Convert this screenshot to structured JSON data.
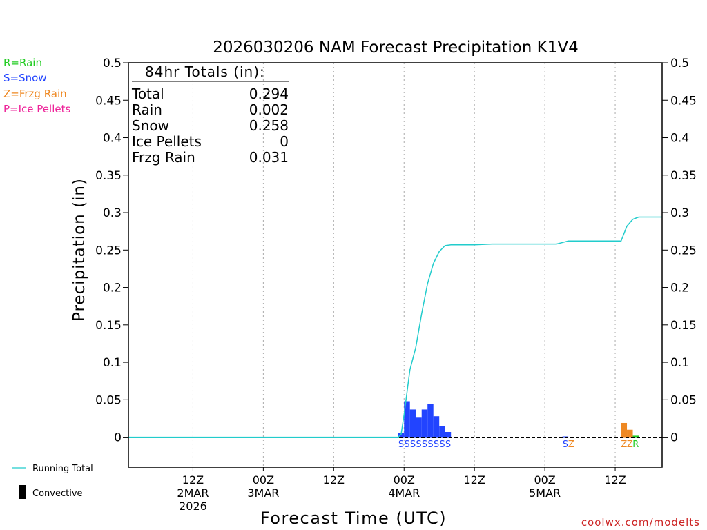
{
  "chart_data": {
    "type": "bar",
    "title": "2026030206 NAM Forecast Precipitation K1V4",
    "xlabel": "Forecast Time (UTC)",
    "ylabel": "Precipitation (in)",
    "ylim": [
      -0.04,
      0.5
    ],
    "xlim_hours": [
      -5,
      86
    ],
    "y_ticks": [
      0,
      0.05,
      0.1,
      0.15,
      0.2,
      0.25,
      0.3,
      0.35,
      0.4,
      0.45,
      0.5
    ],
    "y_tick_labels": [
      "0",
      "0.05",
      "0.1",
      "0.15",
      "0.2",
      "0.25",
      "0.3",
      "0.35",
      "0.4",
      "0.45",
      "0.5"
    ],
    "x_ticks": [
      {
        "hour": 6,
        "label": "12Z",
        "date": "2MAR",
        "year": "2026"
      },
      {
        "hour": 18,
        "label": "00Z",
        "date": "3MAR",
        "year": ""
      },
      {
        "hour": 30,
        "label": "12Z",
        "date": "",
        "year": ""
      },
      {
        "hour": 42,
        "label": "00Z",
        "date": "4MAR",
        "year": ""
      },
      {
        "hour": 54,
        "label": "12Z",
        "date": "",
        "year": ""
      },
      {
        "hour": 66,
        "label": "00Z",
        "date": "5MAR",
        "year": ""
      },
      {
        "hour": 78,
        "label": "12Z",
        "date": "",
        "year": ""
      }
    ],
    "legend": {
      "types": [
        {
          "text": "R=Rain",
          "color": "#22cc22"
        },
        {
          "text": "S=Snow",
          "color": "#2244ff"
        },
        {
          "text": "Z=Frzg Rain",
          "color": "#ee8822"
        },
        {
          "text": "P=Ice Pellets",
          "color": "#ee2299"
        }
      ],
      "running_total": "Running Total",
      "convective": "Convective"
    },
    "totals": {
      "header": "84hr Totals (in):",
      "rows": [
        {
          "label": "Total",
          "value": "0.294"
        },
        {
          "label": "Rain",
          "value": "0.002"
        },
        {
          "label": "Snow",
          "value": "0.258"
        },
        {
          "label": "Ice Pellets",
          "value": "0"
        },
        {
          "label": "Frzg Rain",
          "value": "0.031"
        }
      ]
    },
    "bars": [
      {
        "hour": 41.5,
        "value": 0.006,
        "type": "S"
      },
      {
        "hour": 42.5,
        "value": 0.048,
        "type": "S"
      },
      {
        "hour": 43.5,
        "value": 0.037,
        "type": "S"
      },
      {
        "hour": 44.5,
        "value": 0.027,
        "type": "S"
      },
      {
        "hour": 45.5,
        "value": 0.037,
        "type": "S"
      },
      {
        "hour": 46.5,
        "value": 0.044,
        "type": "S"
      },
      {
        "hour": 47.5,
        "value": 0.028,
        "type": "S"
      },
      {
        "hour": 48.5,
        "value": 0.015,
        "type": "S"
      },
      {
        "hour": 49.5,
        "value": 0.007,
        "type": "S"
      },
      {
        "hour": 69.5,
        "value": 0.001,
        "type": "S"
      },
      {
        "hour": 79.5,
        "value": 0.019,
        "type": "Z"
      },
      {
        "hour": 80.5,
        "value": 0.01,
        "type": "Z"
      },
      {
        "hour": 81.5,
        "value": 0.002,
        "type": "R"
      }
    ],
    "type_labels": [
      {
        "hour": 41.5,
        "type": "S"
      },
      {
        "hour": 42.5,
        "type": "S"
      },
      {
        "hour": 43.5,
        "type": "S"
      },
      {
        "hour": 44.5,
        "type": "S"
      },
      {
        "hour": 45.5,
        "type": "S"
      },
      {
        "hour": 46.5,
        "type": "S"
      },
      {
        "hour": 47.5,
        "type": "S"
      },
      {
        "hour": 48.5,
        "type": "S"
      },
      {
        "hour": 49.5,
        "type": "S"
      },
      {
        "hour": 69.5,
        "type": "S"
      },
      {
        "hour": 70.5,
        "type": "Z"
      },
      {
        "hour": 79.5,
        "type": "Z"
      },
      {
        "hour": 80.5,
        "type": "Z"
      },
      {
        "hour": 81.5,
        "type": "R"
      }
    ],
    "running_total": {
      "hours": [
        -5,
        41,
        41.5,
        42,
        43,
        44,
        45,
        46,
        47,
        48,
        49,
        50,
        54,
        57,
        66,
        68,
        69,
        70,
        72,
        78,
        79,
        80,
        81,
        82,
        83,
        86
      ],
      "values": [
        0,
        0,
        0.004,
        0.03,
        0.09,
        0.12,
        0.165,
        0.205,
        0.232,
        0.248,
        0.256,
        0.257,
        0.257,
        0.258,
        0.258,
        0.258,
        0.26,
        0.262,
        0.262,
        0.262,
        0.262,
        0.282,
        0.291,
        0.294,
        0.294,
        0.294
      ]
    },
    "colors": {
      "S": "#2244ff",
      "Z": "#ee8822",
      "R": "#22cc22",
      "P": "#ee2299",
      "line": "#22cccc"
    },
    "credit": "coolwx.com/modelts"
  }
}
